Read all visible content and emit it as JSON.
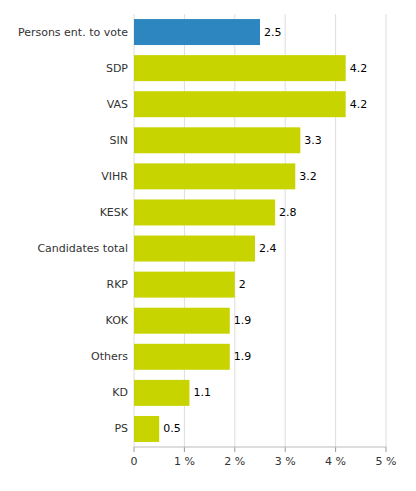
{
  "chart_data": {
    "type": "bar",
    "orientation": "horizontal",
    "categories": [
      "Persons ent. to vote",
      "SDP",
      "VAS",
      "SIN",
      "VIHR",
      "KESK",
      "Candidates total",
      "RKP",
      "KOK",
      "Others",
      "KD",
      "PS"
    ],
    "values": [
      2.5,
      4.2,
      4.2,
      3.3,
      3.2,
      2.8,
      2.4,
      2.0,
      1.9,
      1.9,
      1.1,
      0.5
    ],
    "colors": [
      "#2e86c1",
      "#c8d400",
      "#c8d400",
      "#c8d400",
      "#c8d400",
      "#c8d400",
      "#c8d400",
      "#c8d400",
      "#c8d400",
      "#c8d400",
      "#c8d400",
      "#c8d400"
    ],
    "xlim": [
      0,
      5
    ],
    "xticks": [
      0,
      {
        "value": 1,
        "label": "1 %"
      },
      {
        "value": 2,
        "label": "2 %"
      },
      {
        "value": 3,
        "label": "3 %"
      },
      {
        "value": 4,
        "label": "4 %"
      },
      {
        "value": 5,
        "label": "5 %"
      }
    ],
    "grid": true,
    "data_labels": true
  }
}
